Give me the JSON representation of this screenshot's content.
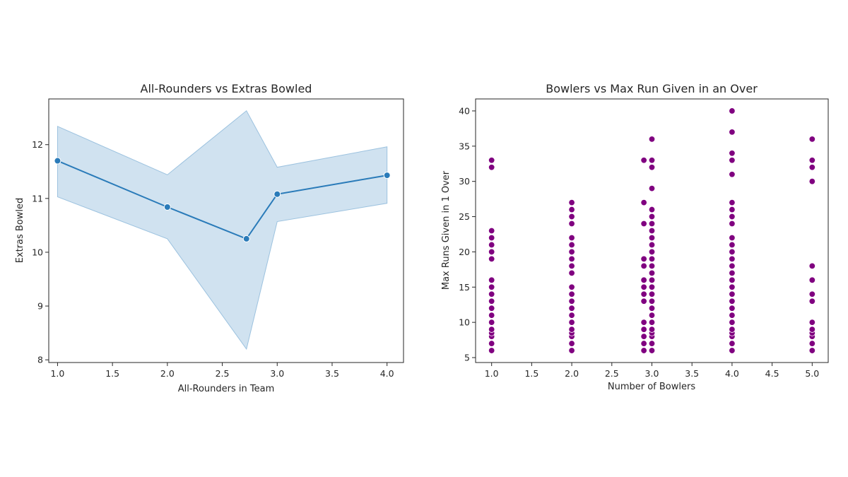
{
  "colors": {
    "line": "#2a7bb9",
    "band": "#bcd6ea",
    "band_edge": "#9cc2df",
    "scatter": "#800080",
    "marker_edge": "#ffffff",
    "axis": "#262626"
  },
  "chart_data": [
    {
      "type": "line",
      "title": "All-Rounders vs Extras Bowled",
      "xlabel": "All-Rounders in Team",
      "ylabel": "Extras Bowled",
      "xlim": [
        0.92,
        4.15
      ],
      "ylim": [
        7.95,
        12.85
      ],
      "xticks": [
        1.0,
        1.5,
        2.0,
        2.5,
        3.0,
        3.5,
        4.0
      ],
      "xtick_labels": [
        "1.0",
        "1.5",
        "2.0",
        "2.5",
        "3.0",
        "3.5",
        "4.0"
      ],
      "yticks": [
        8,
        9,
        10,
        11,
        12
      ],
      "ytick_labels": [
        "8",
        "9",
        "10",
        "11",
        "12"
      ],
      "grid": false,
      "x": [
        1.0,
        2.0,
        2.72,
        3.0,
        4.0
      ],
      "y": [
        11.7,
        10.84,
        10.25,
        11.08,
        11.43
      ],
      "ci_upper": [
        12.34,
        11.44,
        12.63,
        11.58,
        11.96
      ],
      "ci_lower": [
        11.03,
        10.25,
        8.2,
        10.57,
        10.91
      ]
    },
    {
      "type": "scatter",
      "title": "Bowlers vs Max Run Given in an Over",
      "xlabel": "Number of Bowlers",
      "ylabel": "Max Runs Given in 1 Over",
      "xlim": [
        0.8,
        5.2
      ],
      "ylim": [
        4.3,
        41.7
      ],
      "xticks": [
        1.0,
        1.5,
        2.0,
        2.5,
        3.0,
        3.5,
        4.0,
        4.5,
        5.0
      ],
      "xtick_labels": [
        "1.0",
        "1.5",
        "2.0",
        "2.5",
        "3.0",
        "3.5",
        "4.0",
        "4.5",
        "5.0"
      ],
      "yticks": [
        5,
        10,
        15,
        20,
        25,
        30,
        35,
        40
      ],
      "ytick_labels": [
        "5",
        "10",
        "15",
        "20",
        "25",
        "30",
        "35",
        "40"
      ],
      "grid": false,
      "series": [
        {
          "x": 1.0,
          "y": [
            6,
            7,
            8,
            8.5,
            9,
            10,
            11,
            12,
            13,
            14,
            15,
            16,
            19,
            20,
            21,
            22,
            23,
            32,
            33
          ]
        },
        {
          "x": 2.0,
          "y": [
            6,
            7,
            8,
            8.5,
            9,
            10,
            11,
            12,
            13,
            14,
            15,
            17,
            18,
            19,
            20,
            21,
            22,
            24,
            25,
            26,
            27
          ]
        },
        {
          "x": 2.9,
          "y": [
            6,
            7,
            8,
            9,
            10,
            13,
            14,
            15,
            16,
            18,
            19,
            24,
            27,
            33
          ]
        },
        {
          "x": 3.0,
          "y": [
            6,
            7,
            8,
            8.5,
            9,
            10,
            11,
            12,
            13,
            14,
            15,
            16,
            17,
            18,
            19,
            20,
            21,
            22,
            23,
            24,
            25,
            26,
            29,
            32,
            33,
            36
          ]
        },
        {
          "x": 4.0,
          "y": [
            6,
            7,
            8,
            8.5,
            9,
            10,
            11,
            12,
            13,
            14,
            15,
            16,
            17,
            18,
            19,
            20,
            21,
            22,
            24,
            25,
            26,
            27,
            31,
            33,
            34,
            37,
            40
          ]
        },
        {
          "x": 5.0,
          "y": [
            6,
            7,
            8,
            8.5,
            9,
            10,
            13,
            14,
            16,
            18,
            30,
            32,
            33,
            36
          ]
        }
      ]
    }
  ]
}
